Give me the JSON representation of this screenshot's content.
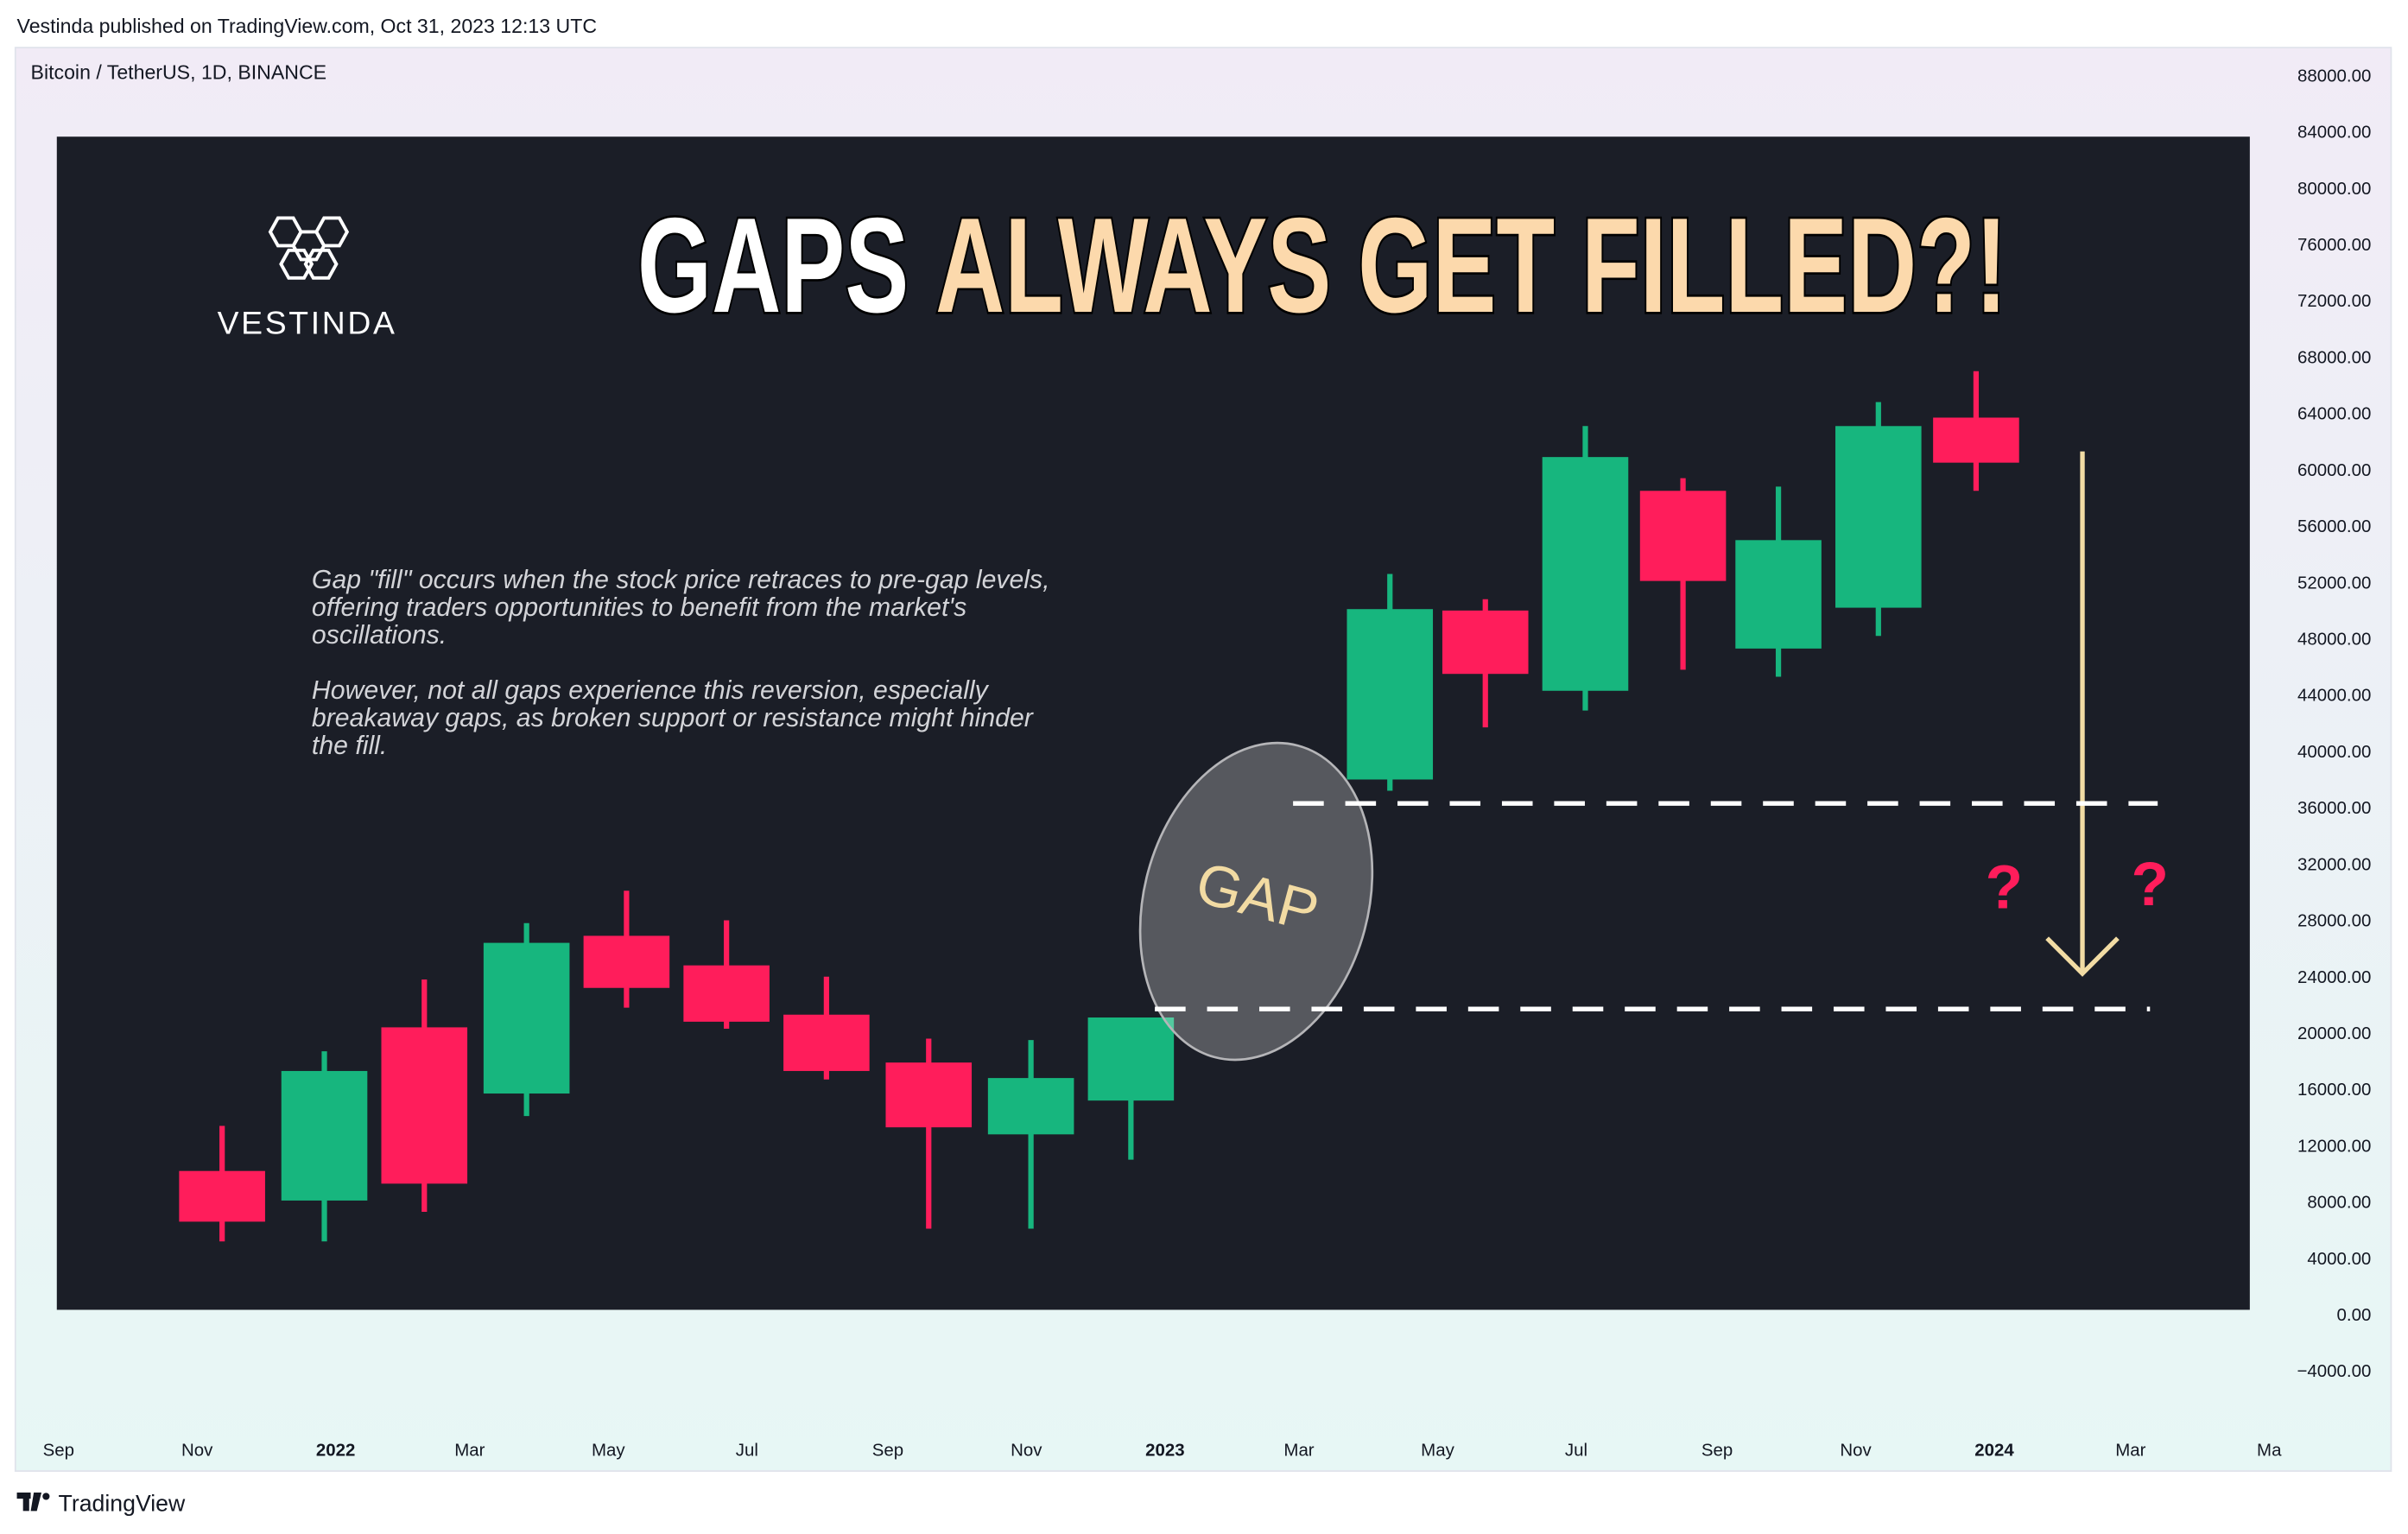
{
  "header": {
    "publisher": "Vestinda published on TradingView.com, Oct 31, 2023 12:13 UTC",
    "symbol": "Bitcoin / TetherUS, 1D, BINANCE"
  },
  "footer": {
    "brand": "TradingView"
  },
  "chart_data": {
    "type": "candlestick",
    "title": [
      "GAPS",
      "ALWAYS GET FILLED?!"
    ],
    "title_colors": [
      "#ffffff",
      "#fcd9ac"
    ],
    "brand": "VESTINDA",
    "description": [
      [
        "Gap \"fill\" occurs when the stock price retraces to pre-gap levels,",
        "offering traders opportunities to benefit from the market's",
        "oscillations."
      ],
      [
        "However, not all gaps experience this reversion, especially",
        "breakaway gaps, as broken support or resistance might hinder",
        "the fill."
      ]
    ],
    "gap_label": "GAP",
    "question_marks": [
      "?",
      "?"
    ],
    "gap_levels": [
      36400,
      21800
    ],
    "up_color": "#17b67e",
    "down_color": "#ff1d5b",
    "x": [
      "2021-11-12",
      "2021-12-27",
      "2022-02-09",
      "2022-03-26",
      "2022-05-09",
      "2022-06-22",
      "2022-08-05",
      "2022-09-19",
      "2022-11-03",
      "2022-12-17",
      "2023-04-10",
      "2023-05-22",
      "2023-07-05",
      "2023-08-17",
      "2023-09-28",
      "2023-11-11",
      "2023-12-24"
    ],
    "open": [
      10300,
      8200,
      20500,
      15800,
      27000,
      24900,
      21400,
      18000,
      12900,
      15300,
      38100,
      50100,
      44400,
      58600,
      47400,
      50300,
      63800
    ],
    "high": [
      13500,
      18800,
      23900,
      27900,
      30200,
      28100,
      24100,
      19700,
      19600,
      21200,
      52700,
      50900,
      63200,
      59500,
      58900,
      64900,
      67100
    ],
    "low": [
      5300,
      5300,
      7400,
      14200,
      21900,
      20400,
      16800,
      6200,
      6200,
      11100,
      37300,
      41800,
      43000,
      45900,
      45400,
      48300,
      58600
    ],
    "close": [
      6700,
      17400,
      9400,
      26500,
      23300,
      20900,
      17400,
      13400,
      16900,
      21200,
      50200,
      45600,
      61000,
      52200,
      55100,
      63200,
      60600
    ],
    "xlim": [
      "2021-08-13",
      "2024-05-06"
    ],
    "xticks": [
      {
        "value": "2021-09-01",
        "label": "Sep"
      },
      {
        "value": "2021-11-01",
        "label": "Nov"
      },
      {
        "value": "2022-01-01",
        "label": "2022"
      },
      {
        "value": "2022-03-01",
        "label": "Mar"
      },
      {
        "value": "2022-05-01",
        "label": "May"
      },
      {
        "value": "2022-07-01",
        "label": "Jul"
      },
      {
        "value": "2022-09-01",
        "label": "Sep"
      },
      {
        "value": "2022-11-01",
        "label": "Nov"
      },
      {
        "value": "2023-01-01",
        "label": "2023"
      },
      {
        "value": "2023-03-01",
        "label": "Mar"
      },
      {
        "value": "2023-05-01",
        "label": "May"
      },
      {
        "value": "2023-07-01",
        "label": "Jul"
      },
      {
        "value": "2023-09-01",
        "label": "Sep"
      },
      {
        "value": "2023-11-01",
        "label": "Nov"
      },
      {
        "value": "2024-01-01",
        "label": "2024"
      },
      {
        "value": "2024-03-01",
        "label": "Mar"
      },
      {
        "value": "2024-05-01",
        "label": "Ma"
      }
    ],
    "ylim": [
      -8000,
      90000
    ],
    "yticks": [
      {
        "value": 88000,
        "label": "88000.00"
      },
      {
        "value": 84000,
        "label": "84000.00"
      },
      {
        "value": 80000,
        "label": "80000.00"
      },
      {
        "value": 76000,
        "label": "76000.00"
      },
      {
        "value": 72000,
        "label": "72000.00"
      },
      {
        "value": 68000,
        "label": "68000.00"
      },
      {
        "value": 64000,
        "label": "64000.00"
      },
      {
        "value": 60000,
        "label": "60000.00"
      },
      {
        "value": 56000,
        "label": "56000.00"
      },
      {
        "value": 52000,
        "label": "52000.00"
      },
      {
        "value": 48000,
        "label": "48000.00"
      },
      {
        "value": 44000,
        "label": "44000.00"
      },
      {
        "value": 40000,
        "label": "40000.00"
      },
      {
        "value": 36000,
        "label": "36000.00"
      },
      {
        "value": 32000,
        "label": "32000.00"
      },
      {
        "value": 28000,
        "label": "28000.00"
      },
      {
        "value": 24000,
        "label": "24000.00"
      },
      {
        "value": 20000,
        "label": "20000.00"
      },
      {
        "value": 16000,
        "label": "16000.00"
      },
      {
        "value": 12000,
        "label": "12000.00"
      },
      {
        "value": 8000,
        "label": "8000.00"
      },
      {
        "value": 4000,
        "label": "4000.00"
      },
      {
        "value": 0,
        "label": "0.00"
      },
      {
        "value": -4000,
        "label": "−4000.00"
      }
    ]
  }
}
